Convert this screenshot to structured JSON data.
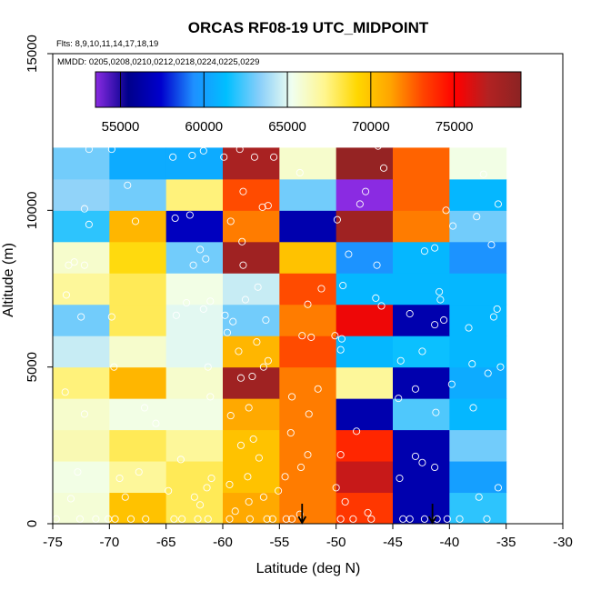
{
  "chart_data": {
    "type": "heatmap",
    "title": "ORCAS RF08-19 UTC_MIDPOINT",
    "flights_note": "Flts: 8,9,10,11,14,17,18,19",
    "dates_note": "MMDD: 0205,0208,0210,0212,0218,0224,0225,0229",
    "xlabel": "Latitude (deg N)",
    "ylabel": "Altitude (m)",
    "xlim": [
      -75,
      -30
    ],
    "ylim": [
      0,
      15000
    ],
    "x_ticks": [
      -75,
      -70,
      -65,
      -60,
      -55,
      -50,
      -45,
      -40,
      -35,
      -30
    ],
    "y_ticks": [
      0,
      5000,
      10000,
      15000
    ],
    "colorbar": {
      "range": [
        53500,
        79000
      ],
      "ticks": [
        55000,
        60000,
        65000,
        70000,
        75000
      ],
      "stops": [
        "#8a2be2",
        "#00008b",
        "#0000cd",
        "#1e90ff",
        "#00bfff",
        "#87cefa",
        "#f0fff0",
        "#fff68f",
        "#ffd700",
        "#ffa500",
        "#ff4500",
        "#ff0000",
        "#b22222",
        "#8b2323"
      ]
    },
    "x_bins": [
      -75,
      -70,
      -65,
      -60,
      -55,
      -50,
      -45,
      -40,
      -35
    ],
    "y_bins": [
      0,
      1000,
      2000,
      3000,
      4000,
      5000,
      6000,
      7000,
      8000,
      9000,
      10000,
      11000,
      12000
    ],
    "cell_values": [
      [
        65800,
        70000,
        68000,
        71000,
        72000,
        73500,
        56500,
        62000
      ],
      [
        65500,
        67000,
        68000,
        70000,
        72000,
        76500,
        56500,
        60000
      ],
      [
        66500,
        68000,
        67000,
        70000,
        72000,
        74000,
        56500,
        63000
      ],
      [
        66000,
        65500,
        65500,
        71000,
        72000,
        56500,
        62500,
        61000
      ],
      [
        67500,
        70500,
        66000,
        78000,
        72000,
        67000,
        56500,
        60500
      ],
      [
        64500,
        66000,
        65000,
        70500,
        73000,
        61000,
        61500,
        61000
      ],
      [
        63000,
        68000,
        65000,
        63000,
        72000,
        75500,
        56500,
        61000
      ],
      [
        67000,
        68000,
        65500,
        64500,
        73000,
        61000,
        61000,
        61000
      ],
      [
        66000,
        69000,
        63000,
        78000,
        70000,
        59500,
        61000,
        59500
      ],
      [
        62000,
        70500,
        57000,
        72000,
        56500,
        78000,
        72000,
        63000
      ],
      [
        63500,
        63000,
        67500,
        73000,
        63000,
        53500,
        72500,
        61000
      ],
      [
        63000,
        60500,
        60500,
        77500,
        66000,
        78500,
        72500,
        65500
      ]
    ],
    "obs_points": [
      [
        -74.7,
        150
      ],
      [
        -73.4,
        800
      ],
      [
        -71.2,
        150
      ],
      [
        -72.6,
        150
      ],
      [
        -72.8,
        1650
      ],
      [
        -72.2,
        3500
      ],
      [
        -73.9,
        4200
      ],
      [
        -72.5,
        6600
      ],
      [
        -73.8,
        7300
      ],
      [
        -73.6,
        8250
      ],
      [
        -72.2,
        8250
      ],
      [
        -73.1,
        8350
      ],
      [
        -71.8,
        9550
      ],
      [
        -72.2,
        10050
      ],
      [
        -69.8,
        11950
      ],
      [
        -71.8,
        11950
      ],
      [
        -69.5,
        150
      ],
      [
        -68.1,
        150
      ],
      [
        -66.8,
        150
      ],
      [
        -70.1,
        150
      ],
      [
        -68.6,
        850
      ],
      [
        -67.4,
        1650
      ],
      [
        -69.1,
        1450
      ],
      [
        -65.9,
        3200
      ],
      [
        -69.6,
        5000
      ],
      [
        -69.8,
        6600
      ],
      [
        -67.7,
        9650
      ],
      [
        -68.4,
        10800
      ],
      [
        -66.9,
        3700
      ],
      [
        -64.3,
        150
      ],
      [
        -63.6,
        150
      ],
      [
        -62.2,
        150
      ],
      [
        -61.3,
        150
      ],
      [
        -64.8,
        1050
      ],
      [
        -62.5,
        850
      ],
      [
        -62.0,
        600
      ],
      [
        -61.0,
        1450
      ],
      [
        -61.4,
        1150
      ],
      [
        -63.7,
        2050
      ],
      [
        -64.1,
        6650
      ],
      [
        -63.2,
        7050
      ],
      [
        -62.6,
        8250
      ],
      [
        -61.5,
        8450
      ],
      [
        -62.0,
        8750
      ],
      [
        -64.2,
        9750
      ],
      [
        -62.9,
        9850
      ],
      [
        -61.1,
        4050
      ],
      [
        -61.3,
        5000
      ],
      [
        -61.7,
        6850
      ],
      [
        -61.1,
        7100
      ],
      [
        -64.4,
        11700
      ],
      [
        -62.7,
        11750
      ],
      [
        -61.7,
        11900
      ],
      [
        -59.4,
        150
      ],
      [
        -57.6,
        150
      ],
      [
        -56.1,
        150
      ],
      [
        -55.6,
        150
      ],
      [
        -58.9,
        400
      ],
      [
        -57.7,
        700
      ],
      [
        -56.4,
        850
      ],
      [
        -55.1,
        1050
      ],
      [
        -59.4,
        1250
      ],
      [
        -57.8,
        1500
      ],
      [
        -56.8,
        2100
      ],
      [
        -58.4,
        2500
      ],
      [
        -57.3,
        2700
      ],
      [
        -59.3,
        3450
      ],
      [
        -57.7,
        3700
      ],
      [
        -58.4,
        4650
      ],
      [
        -57.4,
        4700
      ],
      [
        -56.4,
        5000
      ],
      [
        -56.0,
        5200
      ],
      [
        -58.6,
        5500
      ],
      [
        -57.0,
        5800
      ],
      [
        -59.6,
        6100
      ],
      [
        -59.1,
        6450
      ],
      [
        -56.2,
        6500
      ],
      [
        -59.8,
        6650
      ],
      [
        -58.0,
        7150
      ],
      [
        -56.9,
        7550
      ],
      [
        -58.2,
        8250
      ],
      [
        -58.3,
        9000
      ],
      [
        -59.3,
        9650
      ],
      [
        -56.5,
        10100
      ],
      [
        -56.0,
        10150
      ],
      [
        -58.2,
        10600
      ],
      [
        -59.9,
        11700
      ],
      [
        -57.2,
        11700
      ],
      [
        -55.5,
        11700
      ],
      [
        -58.5,
        11950
      ],
      [
        -54.4,
        150
      ],
      [
        -53.9,
        150
      ],
      [
        -53.2,
        300
      ],
      [
        -54.5,
        1500
      ],
      [
        -53.1,
        1800
      ],
      [
        -52.5,
        2200
      ],
      [
        -54.0,
        2900
      ],
      [
        -52.4,
        3500
      ],
      [
        -53.9,
        4050
      ],
      [
        -51.6,
        4300
      ],
      [
        -52.2,
        5950
      ],
      [
        -53.0,
        6000
      ],
      [
        -52.5,
        7000
      ],
      [
        -51.3,
        7500
      ],
      [
        -53.2,
        11200
      ],
      [
        -49.6,
        150
      ],
      [
        -48.5,
        150
      ],
      [
        -46.9,
        150
      ],
      [
        -47.2,
        350
      ],
      [
        -49.2,
        700
      ],
      [
        -50.0,
        1150
      ],
      [
        -49.6,
        2200
      ],
      [
        -48.2,
        2950
      ],
      [
        -49.6,
        5550
      ],
      [
        -49.5,
        5900
      ],
      [
        -50.1,
        6000
      ],
      [
        -49.4,
        7600
      ],
      [
        -48.9,
        8600
      ],
      [
        -49.9,
        9700
      ],
      [
        -47.9,
        10200
      ],
      [
        -47.4,
        10600
      ],
      [
        -46.4,
        8250
      ],
      [
        -46.5,
        7200
      ],
      [
        -46.0,
        6950
      ],
      [
        -45.8,
        11350
      ],
      [
        -46.3,
        12050
      ],
      [
        -44.1,
        150
      ],
      [
        -43.5,
        150
      ],
      [
        -42.2,
        150
      ],
      [
        -41.1,
        150
      ],
      [
        -40.2,
        150
      ],
      [
        -44.4,
        1450
      ],
      [
        -43.0,
        2150
      ],
      [
        -42.4,
        1950
      ],
      [
        -41.3,
        1800
      ],
      [
        -41.2,
        3550
      ],
      [
        -44.5,
        4000
      ],
      [
        -43.0,
        4300
      ],
      [
        -44.3,
        5200
      ],
      [
        -42.4,
        5500
      ],
      [
        -41.3,
        6350
      ],
      [
        -40.5,
        6500
      ],
      [
        -39.8,
        4450
      ],
      [
        -40.9,
        7400
      ],
      [
        -43.5,
        6700
      ],
      [
        -42.2,
        8700
      ],
      [
        -41.3,
        8800
      ],
      [
        -40.8,
        7150
      ],
      [
        -40.3,
        10000
      ],
      [
        -39.7,
        9500
      ],
      [
        -39.1,
        150
      ],
      [
        -36.7,
        150
      ],
      [
        -37.4,
        850
      ],
      [
        -35.7,
        1150
      ],
      [
        -37.9,
        3700
      ],
      [
        -38.0,
        5100
      ],
      [
        -35.5,
        5000
      ],
      [
        -36.1,
        6600
      ],
      [
        -38.3,
        6250
      ],
      [
        -36.6,
        4800
      ],
      [
        -35.8,
        6850
      ],
      [
        -37.6,
        9800
      ],
      [
        -36.3,
        8900
      ],
      [
        -37.0,
        11150
      ],
      [
        -35.7,
        10200
      ]
    ],
    "arrow_markers": [
      -53.0,
      -41.5
    ]
  }
}
